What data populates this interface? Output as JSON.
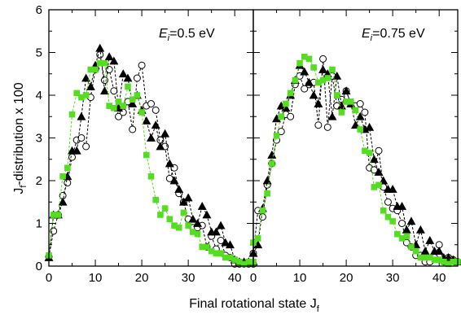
{
  "chart_data": [
    {
      "type": "scatter",
      "annotation": {
        "symbol": "E",
        "subscript": "i",
        "value": "=0.5 eV"
      },
      "xlim": [
        0,
        44
      ],
      "ylim": [
        0,
        6
      ],
      "xticks": [
        0,
        10,
        20,
        30,
        40
      ],
      "yticks": [
        0,
        1,
        2,
        3,
        4,
        5,
        6
      ],
      "series": [
        {
          "marker": "open-circle",
          "color": "#000000",
          "x": [
            0,
            1,
            2,
            3,
            4,
            5,
            6,
            7,
            8,
            9,
            10,
            11,
            12,
            13,
            14,
            15,
            16,
            17,
            18,
            19,
            20,
            21,
            22,
            23,
            24,
            25,
            26,
            27,
            28,
            29,
            30,
            31,
            32,
            33,
            34,
            35,
            36,
            37,
            38,
            39,
            40,
            41,
            42,
            43,
            44
          ],
          "y": [
            0.22,
            0.82,
            1.2,
            1.65,
            1.95,
            2.55,
            2.95,
            3.0,
            2.8,
            3.95,
            4.6,
            4.95,
            4.35,
            4.6,
            4.1,
            3.5,
            3.6,
            3.85,
            3.2,
            4.4,
            4.7,
            3.75,
            3.8,
            3.65,
            2.95,
            2.8,
            2.05,
            2.3,
            1.7,
            1.5,
            1.1,
            0.9,
            0.9,
            0.95,
            0.45,
            0.7,
            0.4,
            0.6,
            0.25,
            0.2,
            0.05,
            0.05,
            0.05,
            0.05,
            0.05
          ]
        },
        {
          "marker": "filled-triangle",
          "color": "#000000",
          "x": [
            0,
            1,
            2,
            3,
            4,
            5,
            6,
            7,
            8,
            9,
            10,
            11,
            12,
            13,
            14,
            15,
            16,
            17,
            18,
            19,
            20,
            21,
            22,
            23,
            24,
            25,
            26,
            27,
            28,
            29,
            30,
            31,
            32,
            33,
            34,
            35,
            36,
            37,
            38,
            39,
            40,
            41,
            42,
            43,
            44
          ],
          "y": [
            0.2,
            1.2,
            1.2,
            1.5,
            2.1,
            2.7,
            2.7,
            3.5,
            4.4,
            4.2,
            4.7,
            5.1,
            4.1,
            4.9,
            4.8,
            3.7,
            4.5,
            4.4,
            3.8,
            4.0,
            3.65,
            3.4,
            3.0,
            3.3,
            2.8,
            3.1,
            2.4,
            2.0,
            1.8,
            1.5,
            1.6,
            1.1,
            1.0,
            1.4,
            1.2,
            0.8,
            0.8,
            0.95,
            0.55,
            0.5,
            0.15,
            0.1,
            0.1,
            0.1,
            0.1
          ]
        },
        {
          "marker": "filled-square",
          "color": "#55DD22",
          "x": [
            0,
            1,
            2,
            3,
            4,
            5,
            6,
            7,
            8,
            9,
            10,
            11,
            12,
            13,
            14,
            15,
            16,
            17,
            18,
            19,
            20,
            21,
            22,
            23,
            24,
            25,
            26,
            27,
            28,
            29,
            30,
            31,
            32,
            33,
            34,
            35,
            36,
            37,
            38,
            39,
            40,
            41,
            42,
            43,
            44
          ],
          "y": [
            0.25,
            1.2,
            1.2,
            2.1,
            2.3,
            3.55,
            4.05,
            3.95,
            4.0,
            4.6,
            4.6,
            4.75,
            4.75,
            3.75,
            3.7,
            3.85,
            3.75,
            4.2,
            3.9,
            4.0,
            3.6,
            2.6,
            2.1,
            1.55,
            1.2,
            1.35,
            1.1,
            0.95,
            0.9,
            1.25,
            0.95,
            0.8,
            0.75,
            0.45,
            0.45,
            0.35,
            0.3,
            0.3,
            0.2,
            0.2,
            0.15,
            0.1,
            0.05,
            0.1,
            0.1
          ]
        }
      ]
    },
    {
      "type": "scatter",
      "annotation": {
        "symbol": "E",
        "subscript": "i",
        "value": "=0.75 eV"
      },
      "xlim": [
        0,
        44
      ],
      "ylim": [
        0,
        6
      ],
      "xticks": [
        0,
        10,
        20,
        30,
        40
      ],
      "yticks": [
        0,
        1,
        2,
        3,
        4,
        5,
        6
      ],
      "series": [
        {
          "marker": "open-circle",
          "color": "#000000",
          "x": [
            0,
            1,
            2,
            3,
            4,
            5,
            6,
            7,
            8,
            9,
            10,
            11,
            12,
            13,
            14,
            15,
            16,
            17,
            18,
            19,
            20,
            21,
            22,
            23,
            24,
            25,
            26,
            27,
            28,
            29,
            30,
            31,
            32,
            33,
            34,
            35,
            36,
            37,
            38,
            39,
            40,
            41,
            42,
            43,
            44
          ],
          "y": [
            0.3,
            1.3,
            1.15,
            1.9,
            2.4,
            2.95,
            3.15,
            3.55,
            3.5,
            4.25,
            4.45,
            4.15,
            4.25,
            4.3,
            3.3,
            4.85,
            3.25,
            4.45,
            3.75,
            3.9,
            4.1,
            3.8,
            3.75,
            3.8,
            3.6,
            2.3,
            2.25,
            2.7,
            1.85,
            1.5,
            1.35,
            1.3,
            1.0,
            0.55,
            0.45,
            0.25,
            0.25,
            0.1,
            0.1,
            0.2,
            0.5,
            0.1,
            0.2,
            0.15,
            0.1
          ]
        },
        {
          "marker": "filled-triangle",
          "color": "#000000",
          "x": [
            0,
            1,
            2,
            3,
            4,
            5,
            6,
            7,
            8,
            9,
            10,
            11,
            12,
            13,
            14,
            15,
            16,
            17,
            18,
            19,
            20,
            21,
            22,
            23,
            24,
            25,
            26,
            27,
            28,
            29,
            30,
            31,
            32,
            33,
            34,
            35,
            36,
            37,
            38,
            39,
            40,
            41,
            42,
            43,
            44
          ],
          "y": [
            0.3,
            0.5,
            1.35,
            2.0,
            2.6,
            3.45,
            3.75,
            3.7,
            4.0,
            4.35,
            4.7,
            4.55,
            4.3,
            4.0,
            3.8,
            4.6,
            4.5,
            3.5,
            4.45,
            3.75,
            4.1,
            3.8,
            3.3,
            3.5,
            3.2,
            3.25,
            2.5,
            2.2,
            2.0,
            1.8,
            1.8,
            1.4,
            1.4,
            0.85,
            1.05,
            0.5,
            0.85,
            0.35,
            0.6,
            0.35,
            0.35,
            0.2,
            0.2,
            0.15,
            0.1
          ]
        },
        {
          "marker": "filled-square",
          "color": "#55DD22",
          "x": [
            0,
            1,
            2,
            3,
            4,
            5,
            6,
            7,
            8,
            9,
            10,
            11,
            12,
            13,
            14,
            15,
            16,
            17,
            18,
            19,
            20,
            21,
            22,
            23,
            24,
            25,
            26,
            27,
            28,
            29,
            30,
            31,
            32,
            33,
            34,
            35,
            36,
            37,
            38,
            39,
            40,
            41,
            42,
            43,
            44
          ],
          "y": [
            0.55,
            0.65,
            1.3,
            1.7,
            2.4,
            3.05,
            3.5,
            3.8,
            4.05,
            4.35,
            4.75,
            4.9,
            4.85,
            4.65,
            4.3,
            4.35,
            4.4,
            4.6,
            4.0,
            3.6,
            3.85,
            3.85,
            3.65,
            3.2,
            2.7,
            2.65,
            1.85,
            1.9,
            1.3,
            1.15,
            1.05,
            0.75,
            0.65,
            0.7,
            0.45,
            0.35,
            0.2,
            0.2,
            0.2,
            0.15,
            0.15,
            0.1,
            0.05,
            0.1,
            0.1
          ]
        }
      ]
    }
  ],
  "shared": {
    "ylabel": {
      "main": "J",
      "sub": "f",
      "rest": "-distribution x 100"
    },
    "xlabel": {
      "main": "Final rotational state J",
      "sub": "f"
    }
  }
}
